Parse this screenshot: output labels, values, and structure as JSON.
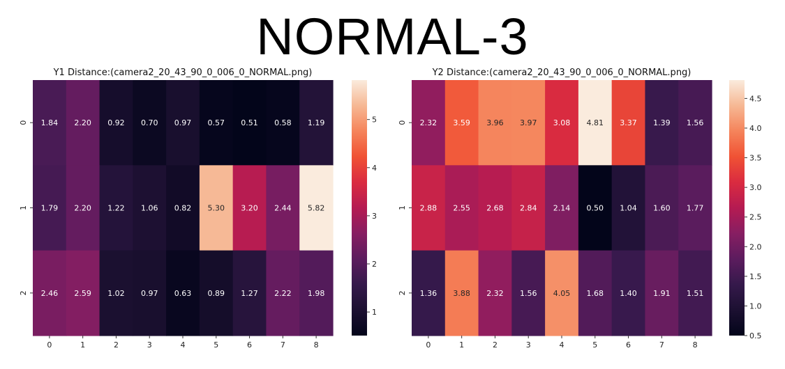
{
  "super_title": "NORMAL-3",
  "chart_data": [
    {
      "type": "heatmap",
      "title": "Y1 Distance:(camera2_20_43_90_0_006_0_NORMAL.png)",
      "x_ticks": [
        "0",
        "1",
        "2",
        "3",
        "4",
        "5",
        "6",
        "7",
        "8"
      ],
      "y_ticks": [
        "0",
        "1",
        "2"
      ],
      "values": [
        [
          1.84,
          2.2,
          0.92,
          0.7,
          0.97,
          0.57,
          0.51,
          0.58,
          1.19
        ],
        [
          1.79,
          2.2,
          1.22,
          1.06,
          0.82,
          5.3,
          3.2,
          2.44,
          5.82
        ],
        [
          2.46,
          2.59,
          1.02,
          0.97,
          0.63,
          0.89,
          1.27,
          2.22,
          1.98
        ]
      ],
      "labels": [
        [
          "1.84",
          "2.20",
          "0.92",
          "0.70",
          "0.97",
          "0.57",
          "0.51",
          "0.58",
          "1.19"
        ],
        [
          "1.79",
          "2.20",
          "1.22",
          "1.06",
          "0.82",
          "5.30",
          "3.20",
          "2.44",
          "5.82"
        ],
        [
          "2.46",
          "2.59",
          "1.02",
          "0.97",
          "0.63",
          "0.89",
          "1.27",
          "2.22",
          "1.98"
        ]
      ],
      "vmin": 0.51,
      "vmax": 5.82,
      "colorbar_ticks": [
        1,
        2,
        3,
        4,
        5
      ],
      "colorbar_tick_labels": [
        "1",
        "2",
        "3",
        "4",
        "5"
      ],
      "colormap": "rocket"
    },
    {
      "type": "heatmap",
      "title": "Y2 Distance:(camera2_20_43_90_0_006_0_NORMAL.png)",
      "x_ticks": [
        "0",
        "1",
        "2",
        "3",
        "4",
        "5",
        "6",
        "7",
        "8"
      ],
      "y_ticks": [
        "0",
        "1",
        "2"
      ],
      "values": [
        [
          2.32,
          3.59,
          3.96,
          3.97,
          3.08,
          4.81,
          3.37,
          1.39,
          1.56
        ],
        [
          2.88,
          2.55,
          2.68,
          2.84,
          2.14,
          0.5,
          1.04,
          1.6,
          1.77
        ],
        [
          1.36,
          3.88,
          2.32,
          1.56,
          4.05,
          1.68,
          1.4,
          1.91,
          1.51
        ]
      ],
      "labels": [
        [
          "2.32",
          "3.59",
          "3.96",
          "3.97",
          "3.08",
          "4.81",
          "3.37",
          "1.39",
          "1.56"
        ],
        [
          "2.88",
          "2.55",
          "2.68",
          "2.84",
          "2.14",
          "0.50",
          "1.04",
          "1.60",
          "1.77"
        ],
        [
          "1.36",
          "3.88",
          "2.32",
          "1.56",
          "4.05",
          "1.68",
          "1.40",
          "1.91",
          "1.51"
        ]
      ],
      "vmin": 0.5,
      "vmax": 4.81,
      "colorbar_ticks": [
        0.5,
        1.0,
        1.5,
        2.0,
        2.5,
        3.0,
        3.5,
        4.0,
        4.5
      ],
      "colorbar_tick_labels": [
        "0.5",
        "1.0",
        "1.5",
        "2.0",
        "2.5",
        "3.0",
        "3.5",
        "4.0",
        "4.5"
      ],
      "colormap": "rocket"
    }
  ]
}
